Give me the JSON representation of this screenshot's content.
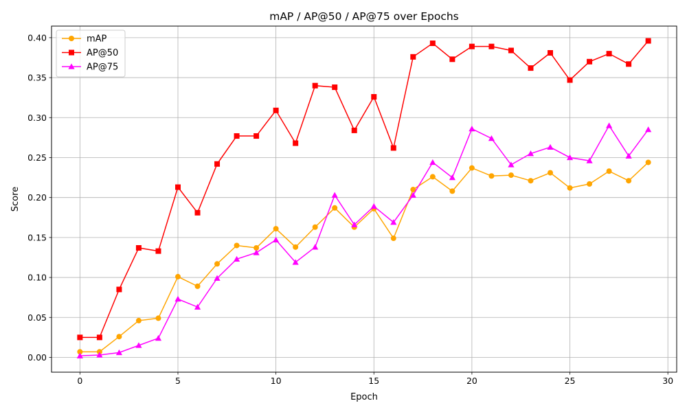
{
  "chart_data": {
    "type": "line",
    "title": "mAP / AP@50 / AP@75 over Epochs",
    "xlabel": "Epoch",
    "ylabel": "Score",
    "xlim": [
      -1.45,
      30.45
    ],
    "ylim": [
      -0.0185,
      0.4145
    ],
    "x_ticks": [
      0,
      5,
      10,
      15,
      20,
      25,
      30
    ],
    "y_ticks": [
      0.0,
      0.05,
      0.1,
      0.15,
      0.2,
      0.25,
      0.3,
      0.35,
      0.4
    ],
    "x_tick_labels": [
      "0",
      "5",
      "10",
      "15",
      "20",
      "25",
      "30"
    ],
    "y_tick_labels": [
      "0.00",
      "0.05",
      "0.10",
      "0.15",
      "0.20",
      "0.25",
      "0.30",
      "0.35",
      "0.40"
    ],
    "grid": true,
    "legend_position": "top-left",
    "x": [
      0,
      1,
      2,
      3,
      4,
      5,
      6,
      7,
      8,
      9,
      10,
      11,
      12,
      13,
      14,
      15,
      16,
      17,
      18,
      19,
      20,
      21,
      22,
      23,
      24,
      25,
      26,
      27,
      28,
      29
    ],
    "series": [
      {
        "name": "mAP",
        "color": "#ffa500",
        "marker": "circle",
        "values": [
          0.007,
          0.007,
          0.026,
          0.046,
          0.049,
          0.101,
          0.089,
          0.117,
          0.14,
          0.137,
          0.161,
          0.138,
          0.163,
          0.187,
          0.163,
          0.186,
          0.149,
          0.21,
          0.226,
          0.208,
          0.237,
          0.227,
          0.228,
          0.221,
          0.231,
          0.212,
          0.217,
          0.233,
          0.221,
          0.244
        ]
      },
      {
        "name": "AP@50",
        "color": "#ff0000",
        "marker": "square",
        "values": [
          0.025,
          0.025,
          0.085,
          0.137,
          0.133,
          0.213,
          0.181,
          0.242,
          0.277,
          0.277,
          0.309,
          0.268,
          0.34,
          0.338,
          0.284,
          0.326,
          0.262,
          0.376,
          0.393,
          0.373,
          0.389,
          0.389,
          0.384,
          0.362,
          0.381,
          0.347,
          0.37,
          0.38,
          0.367,
          0.396
        ]
      },
      {
        "name": "AP@75",
        "color": "#ff00ff",
        "marker": "triangle",
        "values": [
          0.002,
          0.003,
          0.006,
          0.015,
          0.024,
          0.073,
          0.063,
          0.099,
          0.123,
          0.131,
          0.147,
          0.119,
          0.138,
          0.203,
          0.166,
          0.189,
          0.169,
          0.203,
          0.244,
          0.225,
          0.286,
          0.274,
          0.241,
          0.255,
          0.263,
          0.25,
          0.246,
          0.29,
          0.252,
          0.285
        ]
      }
    ]
  }
}
